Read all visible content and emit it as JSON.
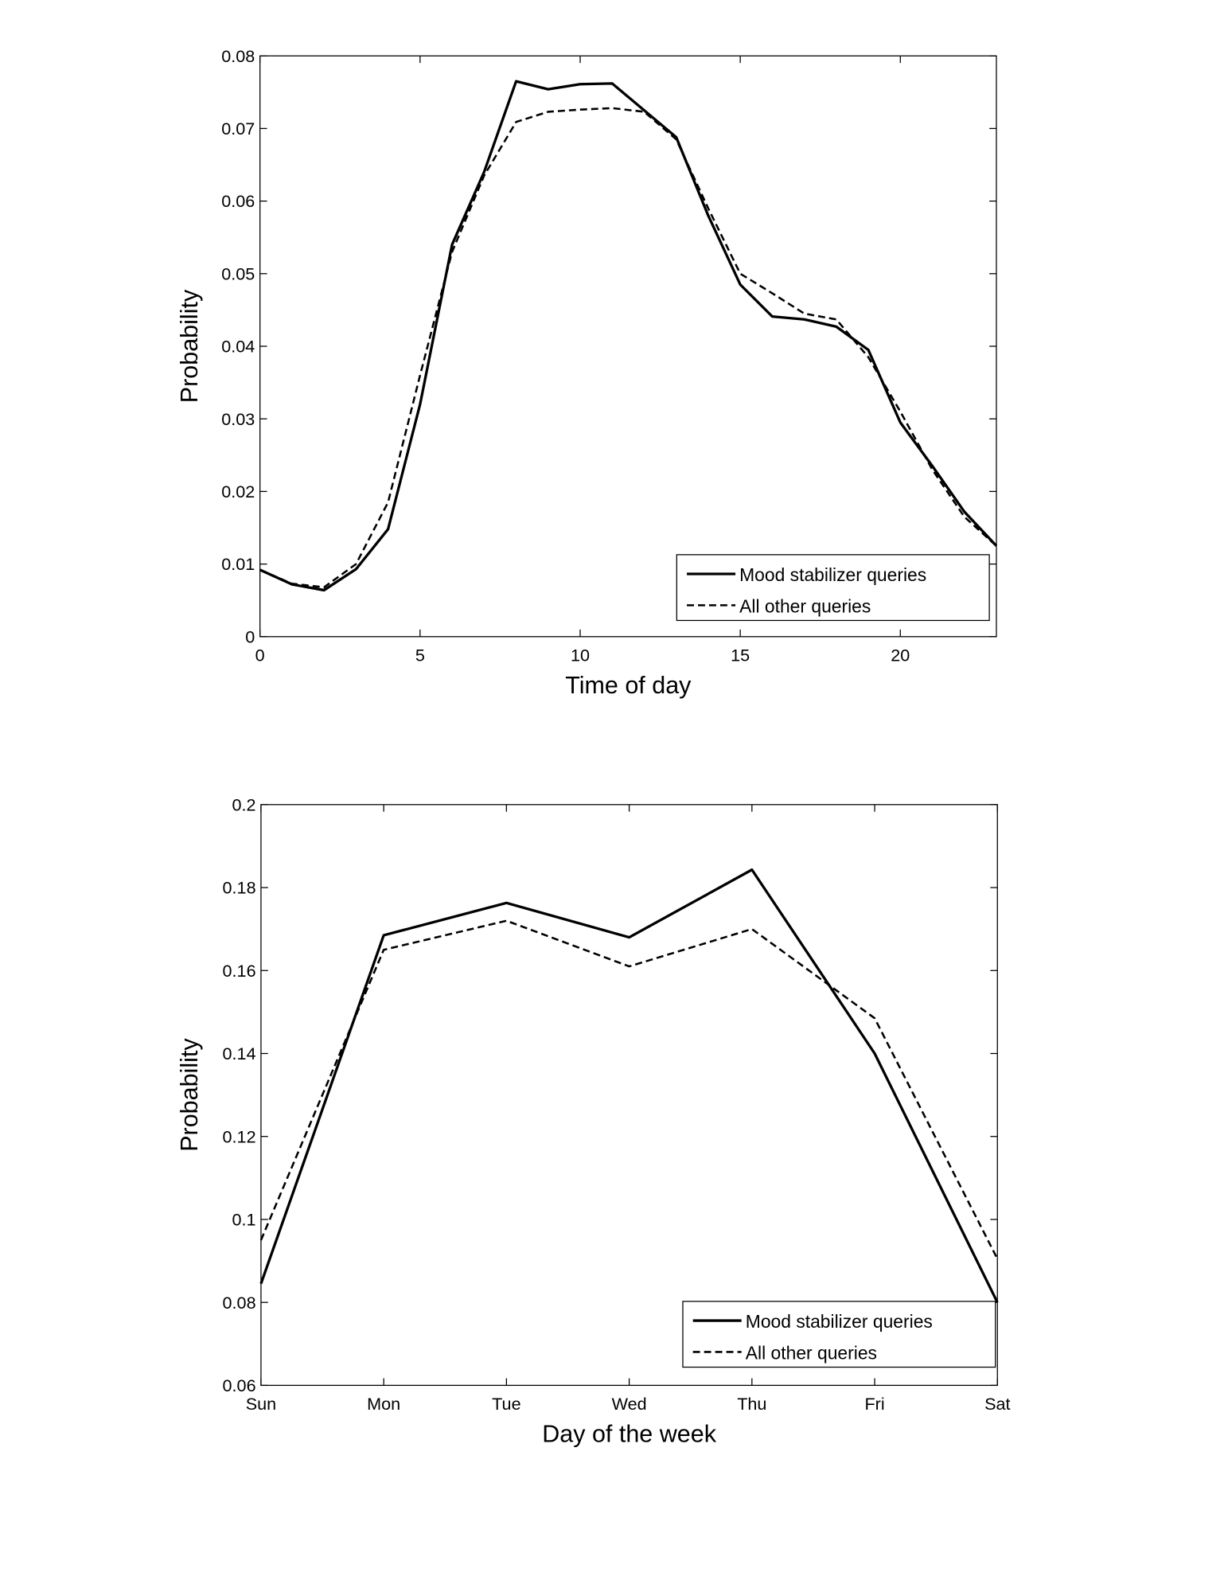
{
  "chart_data": [
    {
      "type": "line",
      "title": "",
      "xlabel": "Time of day",
      "ylabel": "Probability",
      "xlim": [
        0,
        23
      ],
      "ylim": [
        0,
        0.08
      ],
      "xticks": [
        0,
        5,
        10,
        15,
        20
      ],
      "xtick_labels": [
        "0",
        "5",
        "10",
        "15",
        "20"
      ],
      "yticks": [
        0,
        0.01,
        0.02,
        0.03,
        0.04,
        0.05,
        0.06,
        0.07,
        0.08
      ],
      "ytick_labels": [
        "0",
        "0.01",
        "0.02",
        "0.03",
        "0.04",
        "0.05",
        "0.06",
        "0.07",
        "0.08"
      ],
      "legend_position": "bottom-right",
      "grid": false,
      "x": [
        0,
        1,
        2,
        3,
        4,
        5,
        6,
        7,
        8,
        9,
        10,
        11,
        12,
        13,
        14,
        15,
        16,
        17,
        18,
        19,
        20,
        21,
        22,
        23
      ],
      "series": [
        {
          "name": "Mood stabilizer queries",
          "style": "solid",
          "values": [
            0.0092,
            0.0072,
            0.0064,
            0.0093,
            0.0148,
            0.032,
            0.054,
            0.064,
            0.0765,
            0.0754,
            0.0761,
            0.0762,
            0.0725,
            0.0688,
            0.058,
            0.0485,
            0.0441,
            0.0437,
            0.0427,
            0.0395,
            0.0295,
            0.0235,
            0.0172,
            0.0125
          ]
        },
        {
          "name": "All other queries",
          "style": "dashed",
          "values": [
            0.0092,
            0.0073,
            0.0068,
            0.01,
            0.0185,
            0.036,
            0.053,
            0.0635,
            0.0709,
            0.0723,
            0.0726,
            0.0728,
            0.0723,
            0.0685,
            0.059,
            0.05,
            0.0473,
            0.0445,
            0.0437,
            0.0385,
            0.031,
            0.023,
            0.0165,
            0.0125
          ]
        }
      ]
    },
    {
      "type": "line",
      "title": "",
      "xlabel": "Day of the week",
      "ylabel": "Probability",
      "categories": [
        "Sun",
        "Mon",
        "Tue",
        "Wed",
        "Thu",
        "Fri",
        "Sat"
      ],
      "ylim": [
        0.06,
        0.2
      ],
      "yticks": [
        0.06,
        0.08,
        0.1,
        0.12,
        0.14,
        0.16,
        0.18,
        0.2
      ],
      "ytick_labels": [
        "0.06",
        "0.08",
        "0.1",
        "0.12",
        "0.14",
        "0.16",
        "0.18",
        "0.2"
      ],
      "legend_position": "bottom-right",
      "grid": false,
      "series": [
        {
          "name": "Mood stabilizer queries",
          "style": "solid",
          "values": [
            0.0845,
            0.1685,
            0.1763,
            0.168,
            0.1843,
            0.14,
            0.08
          ]
        },
        {
          "name": "All other queries",
          "style": "dashed",
          "values": [
            0.095,
            0.165,
            0.172,
            0.161,
            0.17,
            0.1485,
            0.0905
          ]
        }
      ]
    }
  ]
}
